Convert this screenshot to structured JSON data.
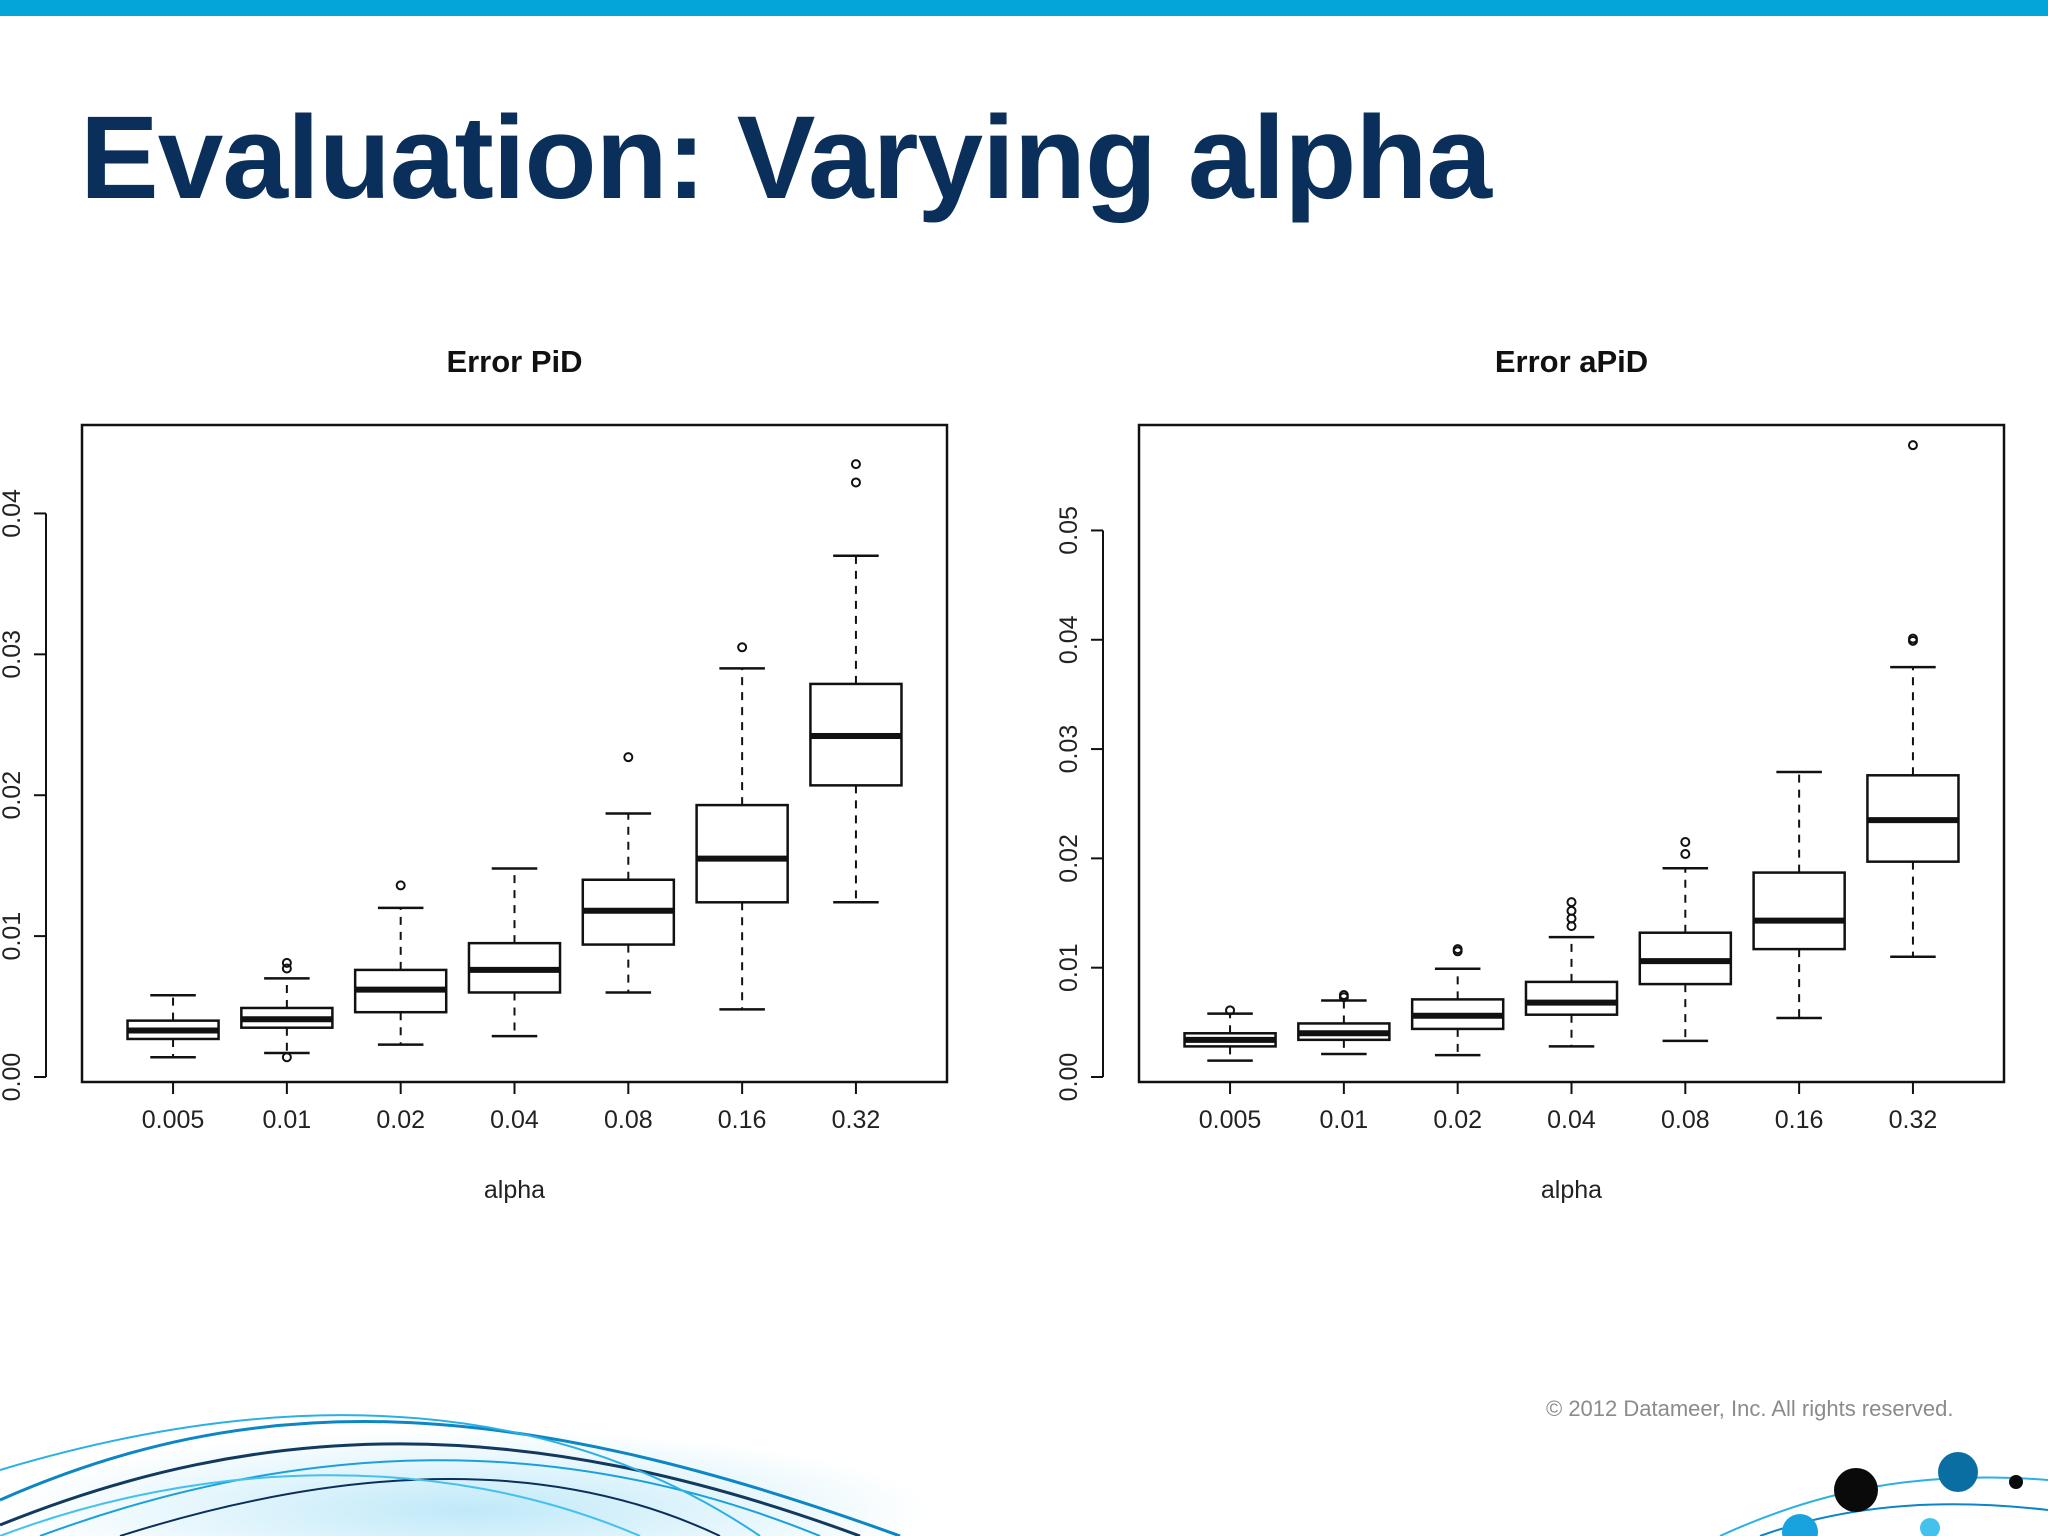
{
  "slide": {
    "title": "Evaluation: Varying alpha",
    "copyright": "© 2012 Datameer, Inc. All rights reserved.",
    "accent_color": "#04a6d9",
    "title_color": "#0b2f5b"
  },
  "chart_data": [
    {
      "type": "boxplot",
      "title": "Error PiD",
      "xlabel": "alpha",
      "ylabel": "",
      "ylim": [
        0,
        0.045
      ],
      "yticks": [
        0.0,
        0.01,
        0.02,
        0.03,
        0.04
      ],
      "ytick_labels": [
        "0.00",
        "0.01",
        "0.02",
        "0.03",
        "0.04"
      ],
      "categories": [
        "0.005",
        "0.01",
        "0.02",
        "0.04",
        "0.08",
        "0.16",
        "0.32"
      ],
      "boxes": [
        {
          "min": 0.0014,
          "q1": 0.0027,
          "median": 0.0033,
          "q3": 0.004,
          "max": 0.0058,
          "outliers": []
        },
        {
          "min": 0.0017,
          "q1": 0.0035,
          "median": 0.0041,
          "q3": 0.0049,
          "max": 0.007,
          "outliers": [
            0.0014,
            0.0077,
            0.0081
          ]
        },
        {
          "min": 0.0023,
          "q1": 0.0046,
          "median": 0.0062,
          "q3": 0.0076,
          "max": 0.012,
          "outliers": [
            0.0136
          ]
        },
        {
          "min": 0.0029,
          "q1": 0.006,
          "median": 0.0076,
          "q3": 0.0095,
          "max": 0.0148,
          "outliers": []
        },
        {
          "min": 0.006,
          "q1": 0.0094,
          "median": 0.0118,
          "q3": 0.014,
          "max": 0.0187,
          "outliers": [
            0.0227
          ]
        },
        {
          "min": 0.0048,
          "q1": 0.0124,
          "median": 0.0155,
          "q3": 0.0193,
          "max": 0.029,
          "outliers": [
            0.0305
          ]
        },
        {
          "min": 0.0124,
          "q1": 0.0207,
          "median": 0.0242,
          "q3": 0.0279,
          "max": 0.037,
          "outliers": [
            0.0422,
            0.0435
          ]
        }
      ]
    },
    {
      "type": "boxplot",
      "title": "Error aPiD",
      "xlabel": "alpha",
      "ylabel": "",
      "ylim": [
        0,
        0.058
      ],
      "yticks": [
        0.0,
        0.01,
        0.02,
        0.03,
        0.04,
        0.05
      ],
      "ytick_labels": [
        "0.00",
        "0.01",
        "0.02",
        "0.03",
        "0.04",
        "0.05"
      ],
      "categories": [
        "0.005",
        "0.01",
        "0.02",
        "0.04",
        "0.08",
        "0.16",
        "0.32"
      ],
      "boxes": [
        {
          "min": 0.0015,
          "q1": 0.0028,
          "median": 0.0034,
          "q3": 0.004,
          "max": 0.0058,
          "outliers": [
            0.0061
          ]
        },
        {
          "min": 0.0021,
          "q1": 0.0034,
          "median": 0.004,
          "q3": 0.0049,
          "max": 0.007,
          "outliers": [
            0.0073,
            0.0075
          ]
        },
        {
          "min": 0.002,
          "q1": 0.0044,
          "median": 0.0056,
          "q3": 0.0071,
          "max": 0.0099,
          "outliers": [
            0.0115,
            0.0117
          ]
        },
        {
          "min": 0.0028,
          "q1": 0.0057,
          "median": 0.0068,
          "q3": 0.0087,
          "max": 0.0128,
          "outliers": [
            0.0138,
            0.0145,
            0.0152,
            0.016
          ]
        },
        {
          "min": 0.0033,
          "q1": 0.0085,
          "median": 0.0106,
          "q3": 0.0132,
          "max": 0.0191,
          "outliers": [
            0.0204,
            0.0215
          ]
        },
        {
          "min": 0.0054,
          "q1": 0.0117,
          "median": 0.0143,
          "q3": 0.0187,
          "max": 0.0279,
          "outliers": []
        },
        {
          "min": 0.011,
          "q1": 0.0197,
          "median": 0.0235,
          "q3": 0.0276,
          "max": 0.0375,
          "outliers": [
            0.0399,
            0.0401,
            0.0578
          ]
        }
      ]
    }
  ]
}
